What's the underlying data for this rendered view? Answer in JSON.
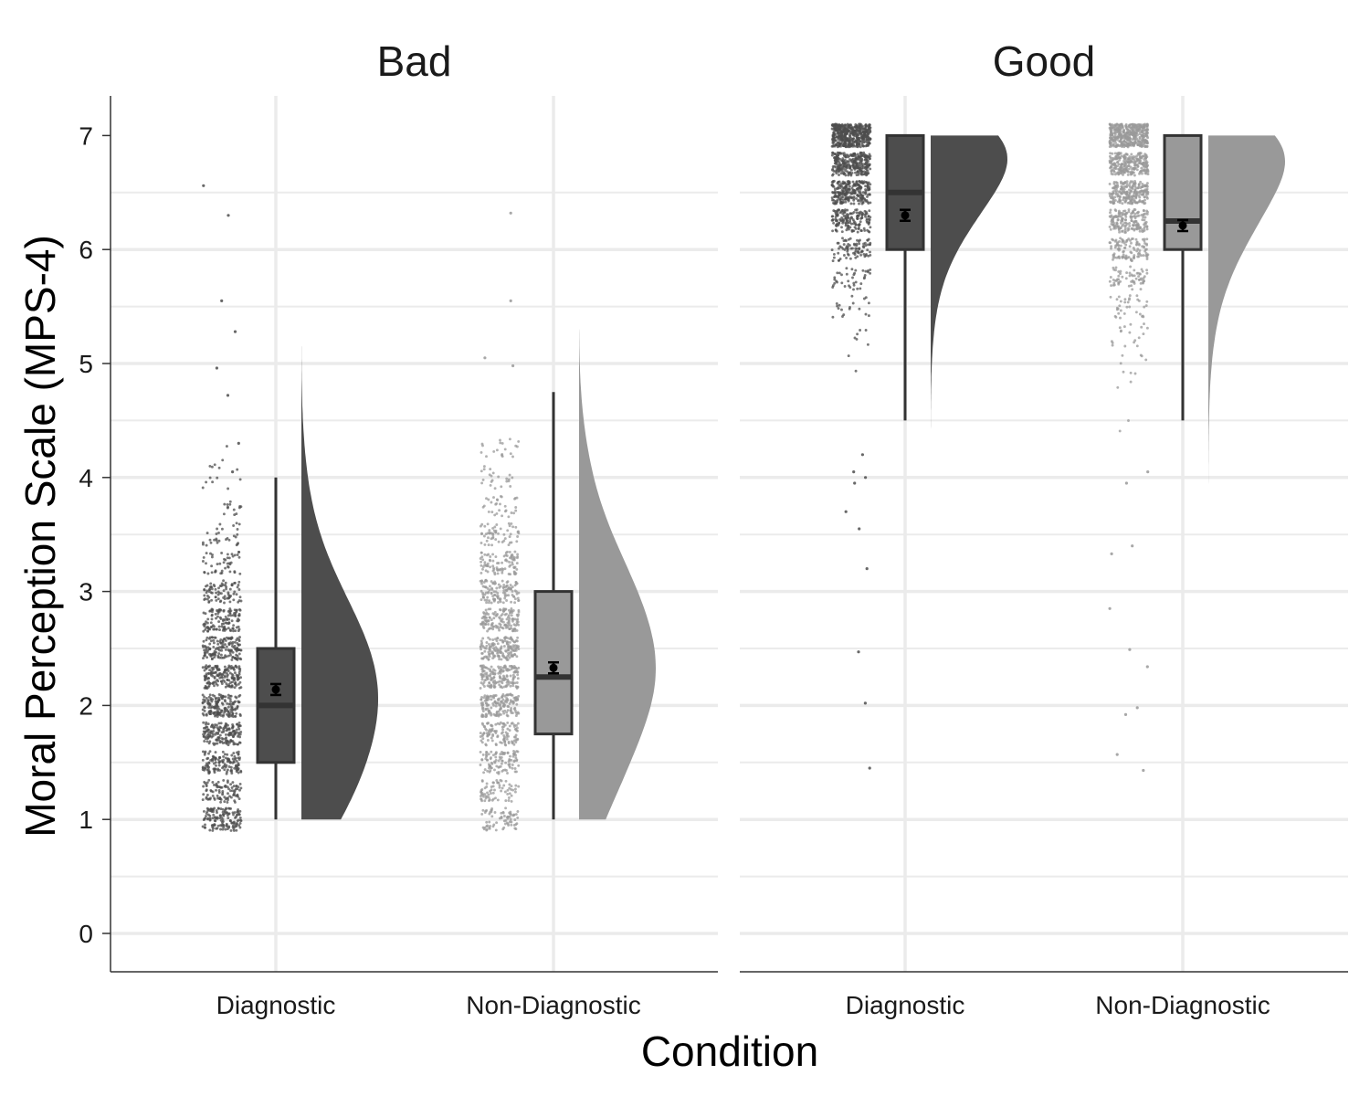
{
  "chart_data": {
    "type": "raincloud",
    "xlabel": "Condition",
    "ylabel": "Moral Perception Scale (MPS-4)",
    "ylim": [
      0,
      7
    ],
    "yticks": [
      0,
      1,
      2,
      3,
      4,
      5,
      6,
      7
    ],
    "categories": [
      "Diagnostic",
      "Non-Diagnostic"
    ],
    "colors": {
      "Diagnostic": "#4d4d4d",
      "Non-Diagnostic": "#999999"
    },
    "grid": true,
    "facets": [
      {
        "title": "Bad",
        "groups": [
          {
            "category": "Diagnostic",
            "box": {
              "min": 1.0,
              "q1": 1.5,
              "median": 2.0,
              "q3": 2.5,
              "max": 4.0
            },
            "mean": 2.14,
            "density_range": [
              1.0,
              5.15
            ],
            "density_peak": 2.0,
            "outliers": [
              4.05,
              4.3,
              4.72,
              4.96,
              5.28,
              5.55,
              6.3,
              6.56
            ]
          },
          {
            "category": "Non-Diagnostic",
            "box": {
              "min": 1.0,
              "q1": 1.75,
              "median": 2.25,
              "q3": 3.0,
              "max": 4.75
            },
            "mean": 2.33,
            "density_range": [
              1.0,
              5.3
            ],
            "density_peak": 2.75,
            "outliers": [
              4.98,
              5.05,
              5.55,
              6.32
            ]
          }
        ]
      },
      {
        "title": "Good",
        "groups": [
          {
            "category": "Diagnostic",
            "box": {
              "min": 4.5,
              "q1": 6.0,
              "median": 6.5,
              "q3": 7.0,
              "max": 7.0
            },
            "mean": 6.3,
            "density_range": [
              3.78,
              7.0
            ],
            "density_peak": 7.0,
            "outliers": [
              1.45,
              2.02,
              2.47,
              3.2,
              3.55,
              3.7,
              3.95,
              4.0,
              4.05,
              4.2
            ]
          },
          {
            "category": "Non-Diagnostic",
            "box": {
              "min": 4.5,
              "q1": 6.0,
              "median": 6.25,
              "q3": 7.0,
              "max": 7.0
            },
            "mean": 6.21,
            "density_range": [
              3.6,
              7.0
            ],
            "density_peak": 7.0,
            "outliers": [
              1.43,
              1.57,
              1.92,
              1.98,
              2.34,
              2.49,
              2.85,
              3.33,
              3.4,
              3.95,
              4.05
            ]
          }
        ]
      }
    ]
  }
}
